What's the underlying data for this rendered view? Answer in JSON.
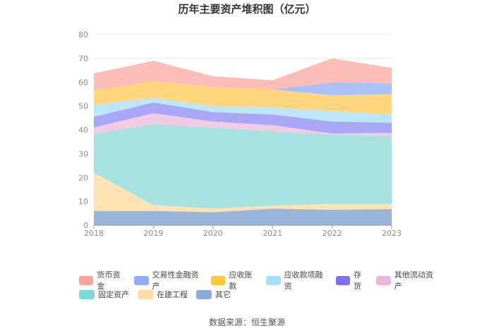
{
  "chart_data": {
    "type": "area",
    "stacked": true,
    "title": "历年主要资产堆积图（亿元）",
    "x": [
      "2018",
      "2019",
      "2020",
      "2021",
      "2022",
      "2023"
    ],
    "ylim": [
      0,
      80
    ],
    "yticks": [
      0,
      10,
      20,
      30,
      40,
      50,
      60,
      70,
      80
    ],
    "grid": true,
    "legend_position": "bottom",
    "series": [
      {
        "name": "其它",
        "color": "#9bb4dc",
        "values": [
          6,
          6,
          5.5,
          7,
          6.5,
          6.8
        ]
      },
      {
        "name": "在建工程",
        "color": "#fde3b4",
        "values": [
          16,
          2.5,
          1.5,
          1.2,
          2.5,
          2.2
        ]
      },
      {
        "name": "固定资产",
        "color": "#a8e2e0",
        "values": [
          16.5,
          34,
          34,
          31.3,
          29,
          28.5
        ]
      },
      {
        "name": "其他流动资产",
        "color": "#f0cbe3",
        "values": [
          2.5,
          4.5,
          2.5,
          2.5,
          0.5,
          1.2
        ]
      },
      {
        "name": "存货",
        "color": "#a9a6f5",
        "values": [
          4.5,
          4.5,
          4,
          4.5,
          5,
          4.3
        ]
      },
      {
        "name": "应收款项融资",
        "color": "#bce6f7",
        "values": [
          5,
          2,
          2.5,
          3,
          4.5,
          3.5
        ]
      },
      {
        "name": "应收账款",
        "color": "#ffd67e",
        "values": [
          6,
          7,
          8,
          7.5,
          6.5,
          8.5
        ]
      },
      {
        "name": "交易性金融资产",
        "color": "#a9c1f5",
        "values": [
          0,
          0,
          0,
          0,
          5.5,
          4.5
        ]
      },
      {
        "name": "货币资金",
        "color": "#fcbdb8",
        "values": [
          7.2,
          8.5,
          4.5,
          3.8,
          10,
          6.5
        ]
      }
    ]
  },
  "legend": {
    "row1": [
      {
        "label": "货币资金",
        "color": "#f8a39c"
      },
      {
        "label": "交易性金融资产",
        "color": "#8fadf2"
      },
      {
        "label": "应收账款",
        "color": "#fcc63e"
      },
      {
        "label": "应收款项融资",
        "color": "#a6def5"
      },
      {
        "label": "存货",
        "color": "#7b72ed"
      },
      {
        "label": "其他流动资产",
        "color": "#ebb8dd"
      }
    ],
    "row2": [
      {
        "label": "固定资产",
        "color": "#7ed8d6"
      },
      {
        "label": "在建工程",
        "color": "#fcdba0"
      },
      {
        "label": "其它",
        "color": "#8eaadc"
      }
    ]
  },
  "source": "数据来源：恒生聚源"
}
